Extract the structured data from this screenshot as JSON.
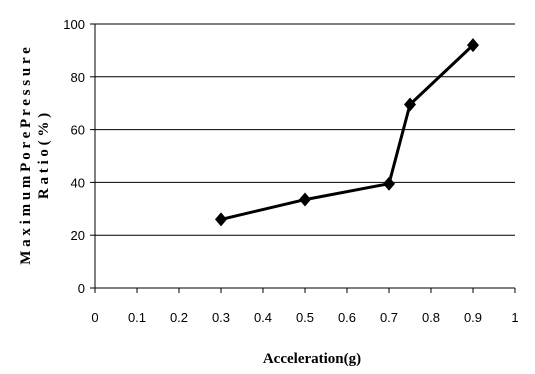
{
  "chart_data": {
    "type": "line",
    "title": "",
    "xlabel": "Acceleration(g)",
    "ylabel_lines": [
      "M a x i m u m  P o r e  P r e s s u r e",
      "R a t i o ( % )"
    ],
    "xlim": [
      0,
      1
    ],
    "ylim": [
      0,
      100
    ],
    "x_ticks": [
      "0",
      "0.1",
      "0.2",
      "0.3",
      "0.4",
      "0.5",
      "0.6",
      "0.7",
      "0.8",
      "0.9",
      "1"
    ],
    "y_ticks": [
      "0",
      "20",
      "40",
      "60",
      "80",
      "100"
    ],
    "grid": "horizontal",
    "legend": "none",
    "series": [
      {
        "x": [
          0.3,
          0.5,
          0.7,
          0.75,
          0.9
        ],
        "y": [
          26,
          33.5,
          39.5,
          69.5,
          92
        ],
        "color": "#000000",
        "marker": "diamond"
      }
    ]
  }
}
